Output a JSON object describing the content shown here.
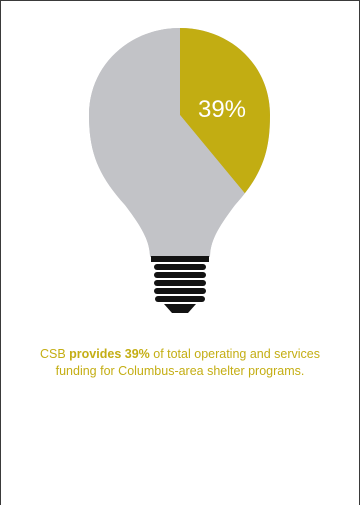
{
  "colors": {
    "accent": "#c2ad12",
    "bulb_gray": "#c2c3c7",
    "base_black": "#121212",
    "border": "#3a3a3a"
  },
  "chart_data": {
    "type": "pie",
    "slices": [
      {
        "label": "CSB",
        "value": 39,
        "color": "#c2ad12"
      },
      {
        "label": "",
        "value": 61,
        "color": "#c2c3c7"
      }
    ],
    "data_label": "39%",
    "title": ""
  },
  "caption": {
    "part1": "CSB ",
    "part2": "provides 39%",
    "part3": " of total operating and services funding for Columbus-area shelter programs."
  }
}
